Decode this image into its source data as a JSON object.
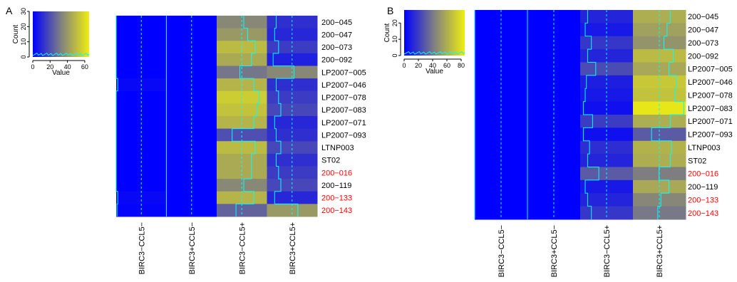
{
  "chart_data": [
    {
      "type": "heatmap",
      "panel_label": "A",
      "columns": [
        "BIRC3−CCL5−",
        "BIRC3+CCL5−",
        "BIRC3−CCL5+",
        "BIRC3+CCL5+"
      ],
      "rows": [
        {
          "name": "200−045",
          "highlight": false
        },
        {
          "name": "200−047",
          "highlight": false
        },
        {
          "name": "200−073",
          "highlight": false
        },
        {
          "name": "200−092",
          "highlight": false
        },
        {
          "name": "LP2007−005",
          "highlight": false
        },
        {
          "name": "LP2007−046",
          "highlight": false
        },
        {
          "name": "LP2007−078",
          "highlight": false
        },
        {
          "name": "LP2007−083",
          "highlight": false
        },
        {
          "name": "LP2007−071",
          "highlight": false
        },
        {
          "name": "LP2007−093",
          "highlight": false
        },
        {
          "name": "LTNP003",
          "highlight": false
        },
        {
          "name": "ST02",
          "highlight": false
        },
        {
          "name": "200−016",
          "highlight": true
        },
        {
          "name": "200−119",
          "highlight": false
        },
        {
          "name": "200−133",
          "highlight": true
        },
        {
          "name": "200−143",
          "highlight": true
        }
      ],
      "values": [
        [
          0,
          0,
          35,
          12
        ],
        [
          0,
          0,
          40,
          10
        ],
        [
          0,
          0,
          50,
          15
        ],
        [
          0,
          0,
          45,
          8
        ],
        [
          0,
          0,
          30,
          35
        ],
        [
          2,
          0,
          48,
          12
        ],
        [
          0,
          0,
          55,
          15
        ],
        [
          0,
          0,
          52,
          18
        ],
        [
          0,
          0,
          48,
          10
        ],
        [
          0,
          0,
          20,
          12
        ],
        [
          0,
          0,
          50,
          18
        ],
        [
          0,
          0,
          45,
          12
        ],
        [
          0,
          0,
          45,
          15
        ],
        [
          0,
          0,
          35,
          18
        ],
        [
          2,
          0,
          48,
          10
        ],
        [
          1,
          0,
          25,
          40
        ]
      ],
      "vmax": 65,
      "key": {
        "xlabel": "Value",
        "ylabel": "Count",
        "x_ticks": [
          0,
          20,
          40,
          60
        ],
        "y_ticks": [
          0,
          10,
          20,
          30
        ],
        "xlim": [
          0,
          65
        ],
        "ylim": [
          0,
          30
        ]
      }
    },
    {
      "type": "heatmap",
      "panel_label": "B",
      "columns": [
        "BIRC3−CCL5−",
        "BIRC3+CCL5−",
        "BIRC3−CCL5+",
        "BIRC3+CCL5+"
      ],
      "rows": [
        {
          "name": "200−045",
          "highlight": false
        },
        {
          "name": "200−047",
          "highlight": false
        },
        {
          "name": "200−073",
          "highlight": false
        },
        {
          "name": "200−092",
          "highlight": false
        },
        {
          "name": "LP2007−005",
          "highlight": false
        },
        {
          "name": "LP2007−046",
          "highlight": false
        },
        {
          "name": "LP2007−078",
          "highlight": false
        },
        {
          "name": "LP2007−083",
          "highlight": false
        },
        {
          "name": "LP2007−071",
          "highlight": false
        },
        {
          "name": "LP2007−093",
          "highlight": false
        },
        {
          "name": "LTNP003",
          "highlight": false
        },
        {
          "name": "ST02",
          "highlight": false
        },
        {
          "name": "200−016",
          "highlight": true
        },
        {
          "name": "200−119",
          "highlight": false
        },
        {
          "name": "200−133",
          "highlight": true
        },
        {
          "name": "200−143",
          "highlight": true
        }
      ],
      "values": [
        [
          0,
          0,
          12,
          60
        ],
        [
          0,
          0,
          8,
          55
        ],
        [
          0,
          0,
          18,
          50
        ],
        [
          0,
          0,
          12,
          65
        ],
        [
          0,
          0,
          25,
          58
        ],
        [
          0,
          0,
          10,
          70
        ],
        [
          0,
          0,
          8,
          68
        ],
        [
          0,
          0,
          5,
          82
        ],
        [
          0,
          0,
          20,
          60
        ],
        [
          0,
          0,
          5,
          30
        ],
        [
          0,
          0,
          15,
          62
        ],
        [
          0,
          0,
          12,
          60
        ],
        [
          0,
          0,
          30,
          42
        ],
        [
          0,
          0,
          8,
          58
        ],
        [
          0,
          0,
          12,
          45
        ],
        [
          0,
          0,
          18,
          40
        ]
      ],
      "vmax": 85,
      "key": {
        "xlabel": "Value",
        "ylabel": "Count",
        "x_ticks": [
          0,
          20,
          40,
          60,
          80
        ],
        "y_ticks": [
          0,
          10,
          20
        ],
        "xlim": [
          0,
          85
        ],
        "ylim": [
          0,
          28
        ]
      }
    }
  ],
  "colors": {
    "low": "#0000ff",
    "high": "#eeee11",
    "trace": "#00ffff",
    "highlight_label": "#ff0000",
    "label": "#000000"
  }
}
